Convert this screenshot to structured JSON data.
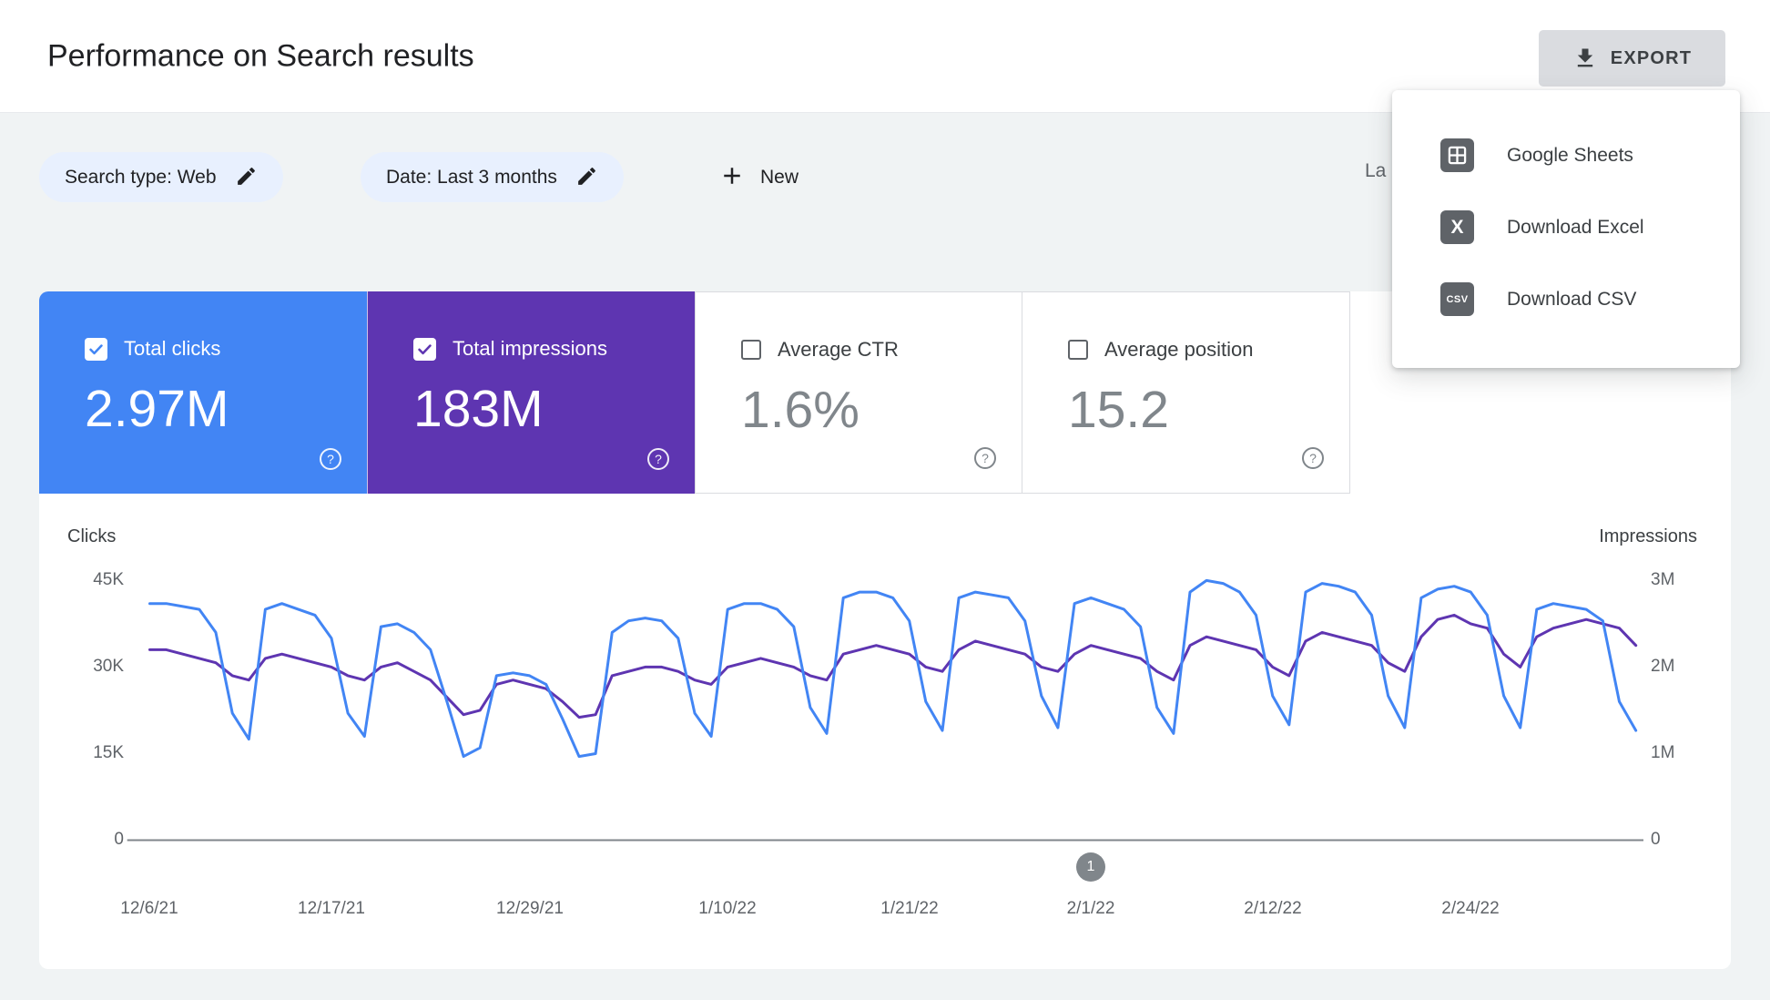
{
  "header": {
    "title": "Performance on Search results",
    "export_button": "EXPORT"
  },
  "export_menu": {
    "items": [
      {
        "icon": "google-sheets-icon",
        "label": "Google Sheets"
      },
      {
        "icon": "excel-icon",
        "label": "Download Excel"
      },
      {
        "icon": "csv-icon",
        "label": "Download CSV"
      }
    ],
    "excel_icon_text": "X",
    "csv_icon_text": "CSV"
  },
  "filters": {
    "search_type_chip": "Search type: Web",
    "date_chip": "Date: Last 3 months",
    "new_button": "New",
    "last_updated_partial": "La"
  },
  "metrics": {
    "help_glyph": "?",
    "cards": [
      {
        "label": "Total clicks",
        "value": "2.97M",
        "checked": true,
        "color": "#4285f4"
      },
      {
        "label": "Total impressions",
        "value": "183M",
        "checked": true,
        "color": "#5e35b1"
      },
      {
        "label": "Average CTR",
        "value": "1.6%",
        "checked": false
      },
      {
        "label": "Average position",
        "value": "15.2",
        "checked": false
      }
    ]
  },
  "chart_data": {
    "type": "line",
    "left_axis": {
      "label": "Clicks",
      "ticks": [
        "45K",
        "30K",
        "15K",
        "0"
      ],
      "max": 45000
    },
    "right_axis": {
      "label": "Impressions",
      "ticks": [
        "3M",
        "2M",
        "1M",
        "0"
      ],
      "max": 3000000
    },
    "x_tick_labels": [
      "12/6/21",
      "12/17/21",
      "12/29/21",
      "1/10/22",
      "1/21/22",
      "2/1/22",
      "2/12/22",
      "2/24/22"
    ],
    "x_tick_indices": [
      0,
      11,
      23,
      35,
      46,
      57,
      68,
      80
    ],
    "annotation": {
      "label": "1",
      "index": 57
    },
    "grid": false,
    "legend_position": "none",
    "series": [
      {
        "name": "Clicks",
        "axis": "left",
        "color": "#4285f4",
        "values": [
          41000,
          41000,
          40500,
          40000,
          36000,
          22000,
          17500,
          40000,
          41000,
          40000,
          39000,
          35000,
          22000,
          18000,
          37000,
          37500,
          36000,
          33000,
          24000,
          14500,
          16000,
          28500,
          29000,
          28500,
          27000,
          21000,
          14500,
          15000,
          36000,
          38000,
          38500,
          38000,
          35000,
          22000,
          18000,
          40000,
          41000,
          41000,
          40000,
          37000,
          23000,
          18500,
          42000,
          43000,
          43000,
          42000,
          38000,
          24000,
          19000,
          42000,
          43000,
          42500,
          42000,
          38000,
          25000,
          19500,
          41000,
          42000,
          41000,
          40000,
          37000,
          23000,
          18500,
          43000,
          45000,
          44500,
          43000,
          39000,
          25000,
          20000,
          43000,
          44500,
          44000,
          43000,
          39000,
          25000,
          19500,
          42000,
          43500,
          44000,
          43000,
          39000,
          25000,
          19500,
          40000,
          41000,
          40500,
          40000,
          38000,
          24000,
          19000
        ]
      },
      {
        "name": "Impressions",
        "axis": "right",
        "color": "#5e35b1",
        "values": [
          2200000,
          2200000,
          2150000,
          2100000,
          2050000,
          1900000,
          1850000,
          2100000,
          2150000,
          2100000,
          2050000,
          2000000,
          1900000,
          1850000,
          2000000,
          2050000,
          1950000,
          1850000,
          1650000,
          1450000,
          1500000,
          1800000,
          1850000,
          1800000,
          1750000,
          1600000,
          1420000,
          1450000,
          1900000,
          1950000,
          2000000,
          2000000,
          1950000,
          1850000,
          1800000,
          2000000,
          2050000,
          2100000,
          2050000,
          2000000,
          1900000,
          1850000,
          2150000,
          2200000,
          2250000,
          2200000,
          2150000,
          2000000,
          1950000,
          2200000,
          2300000,
          2250000,
          2200000,
          2150000,
          2000000,
          1950000,
          2150000,
          2250000,
          2200000,
          2150000,
          2100000,
          1950000,
          1850000,
          2250000,
          2350000,
          2300000,
          2250000,
          2200000,
          2000000,
          1900000,
          2300000,
          2400000,
          2350000,
          2300000,
          2250000,
          2050000,
          1950000,
          2350000,
          2550000,
          2600000,
          2500000,
          2450000,
          2150000,
          2000000,
          2350000,
          2450000,
          2500000,
          2550000,
          2500000,
          2450000,
          2250000
        ]
      }
    ]
  }
}
